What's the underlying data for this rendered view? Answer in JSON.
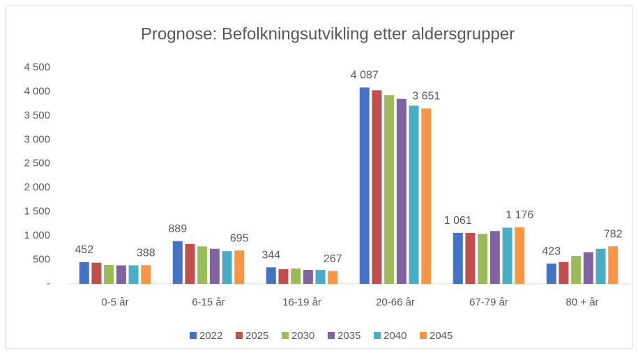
{
  "chart_data": {
    "type": "bar",
    "title": "Prognose: Befolkningsutvikling etter aldersgrupper",
    "categories": [
      "0-5 år",
      "6-15 år",
      "16-19 år",
      "20-66 år",
      "67-79 år",
      "80 + år"
    ],
    "series": [
      {
        "name": "2022",
        "color": "#4472c4",
        "values": [
          452,
          889,
          344,
          4087,
          1061,
          423
        ],
        "value_labels": [
          "452",
          "889",
          "344",
          "4 087",
          "1 061",
          "423"
        ]
      },
      {
        "name": "2025",
        "color": "#c0504d",
        "values": [
          440,
          830,
          305,
          4030,
          1060,
          455
        ]
      },
      {
        "name": "2030",
        "color": "#9bbb59",
        "values": [
          392,
          780,
          320,
          3930,
          1040,
          580
        ]
      },
      {
        "name": "2035",
        "color": "#8064a2",
        "values": [
          385,
          730,
          290,
          3850,
          1100,
          660
        ]
      },
      {
        "name": "2040",
        "color": "#4bacc6",
        "values": [
          385,
          680,
          290,
          3710,
          1170,
          730
        ]
      },
      {
        "name": "2045",
        "color": "#f79646",
        "values": [
          388,
          695,
          267,
          3651,
          1176,
          782
        ],
        "value_labels": [
          "388",
          "695",
          "267",
          "3 651",
          "1 176",
          "782"
        ]
      }
    ],
    "ylim": [
      0,
      4500
    ],
    "yticks": [
      {
        "value": 0,
        "label": "-"
      },
      500,
      {
        "value": 1000,
        "label": "1 000"
      },
      {
        "value": 1500,
        "label": "1 500"
      },
      {
        "value": 2000,
        "label": "2 000"
      },
      {
        "value": 2500,
        "label": "2 500"
      },
      {
        "value": 3000,
        "label": "3 000"
      },
      {
        "value": 3500,
        "label": "3 500"
      },
      {
        "value": 4000,
        "label": "4 000"
      },
      {
        "value": 4500,
        "label": "4 500"
      }
    ],
    "grid": false,
    "legend": "bottom"
  }
}
